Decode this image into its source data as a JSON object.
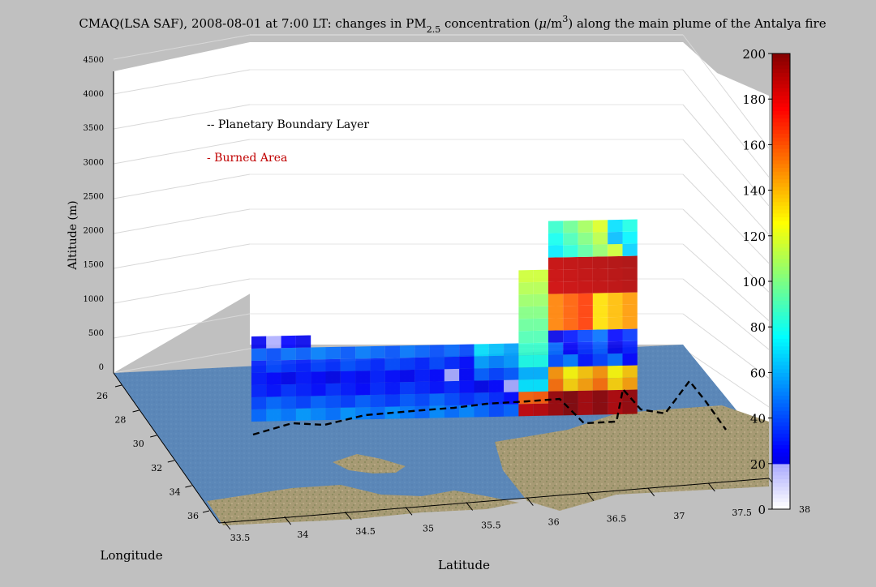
{
  "chart_data": {
    "type": "heatmap",
    "title_pre": "CMAQ(LSA SAF), 2008-08-01 at 7:00 LT: changes in PM",
    "title_sub": "2.5",
    "title_mid": " concentration (",
    "title_mu": "μ",
    "title_unit": "/m",
    "title_sup": "3",
    "title_post": ") along the main plume of the Antalya fire",
    "zlabel": "Altitude (m)",
    "xlabel": "Latitude",
    "ylabel": "Longitude",
    "z_ticks": [
      "0",
      "500",
      "1000",
      "1500",
      "2000",
      "2500",
      "3000",
      "3500",
      "4000",
      "4500"
    ],
    "lat_ticks": [
      "33.5",
      "34",
      "34.5",
      "35",
      "35.5",
      "36",
      "36.5",
      "37",
      "37.5",
      "38"
    ],
    "lon_ticks": [
      "26",
      "28",
      "30",
      "32",
      "34",
      "36"
    ],
    "zlim": [
      0,
      4500
    ],
    "colorbar": {
      "ticks": [
        "0",
        "20",
        "40",
        "60",
        "80",
        "100",
        "120",
        "140",
        "160",
        "180",
        "200"
      ],
      "range": [
        0,
        200
      ],
      "colormap": "jet"
    },
    "legend": [
      {
        "label": "-- Planetary Boundary Layer",
        "color": "#000000"
      },
      {
        "label": "- Burned Area",
        "color": "#c00000"
      }
    ],
    "series": [
      {
        "name": "Planetary Boundary Layer",
        "style": "dashed",
        "color": "#000000"
      }
    ],
    "grid": true
  }
}
